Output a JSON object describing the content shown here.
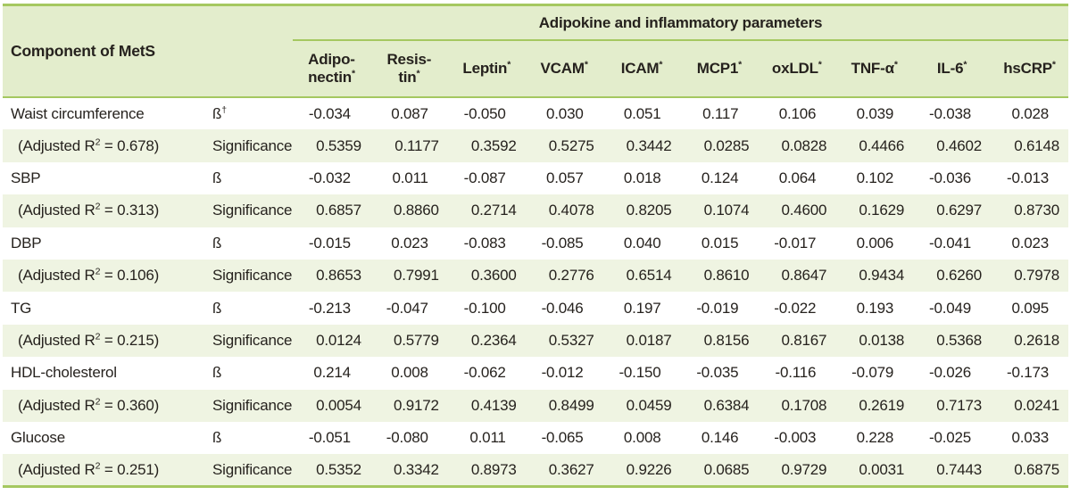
{
  "table": {
    "corner_header": "Component of MetS",
    "group_header": "Adipokine and inflammatory parameters",
    "columns": [
      {
        "key": "adiponectin",
        "label": "Adipo-\nnectin",
        "sup": "*"
      },
      {
        "key": "resistin",
        "label": "Resis-\ntin",
        "sup": "*"
      },
      {
        "key": "leptin",
        "label": "Leptin",
        "sup": "*"
      },
      {
        "key": "vcam",
        "label": "VCAM",
        "sup": "*"
      },
      {
        "key": "icam",
        "label": "ICAM",
        "sup": "*"
      },
      {
        "key": "mcp1",
        "label": "MCP1",
        "sup": "*"
      },
      {
        "key": "oxldl",
        "label": "oxLDL",
        "sup": "*"
      },
      {
        "key": "tnf-alpha",
        "label": "TNF-α",
        "sup": "*"
      },
      {
        "key": "il-6",
        "label": "IL-6",
        "sup": "*"
      },
      {
        "key": "hscrp",
        "label": "hsCRP",
        "sup": "*"
      }
    ],
    "stat_labels": {
      "beta": "ß",
      "significance": "Significance"
    },
    "rows": [
      {
        "key": "waist-circumference",
        "label": "Waist circumference",
        "sub_pre": "(Adjusted R",
        "sub_sup": "2",
        "sub_post": " = 0.678)",
        "beta_sup": "†",
        "beta": [
          "-0.034",
          "0.087",
          "-0.050",
          "0.030",
          "0.051",
          "0.117",
          "0.106",
          "0.039",
          "-0.038",
          "0.028"
        ],
        "significance": [
          "0.5359",
          "0.1177",
          "0.3592",
          "0.5275",
          "0.3442",
          "0.0285",
          "0.0828",
          "0.4466",
          "0.4602",
          "0.6148"
        ]
      },
      {
        "key": "sbp",
        "label": "SBP",
        "sub_pre": "(Adjusted R",
        "sub_sup": "2",
        "sub_post": " = 0.313)",
        "beta_sup": "",
        "beta": [
          "-0.032",
          "0.011",
          "-0.087",
          "0.057",
          "0.018",
          "0.124",
          "0.064",
          "0.102",
          "-0.036",
          "-0.013"
        ],
        "significance": [
          "0.6857",
          "0.8860",
          "0.2714",
          "0.4078",
          "0.8205",
          "0.1074",
          "0.4600",
          "0.1629",
          "0.6297",
          "0.8730"
        ]
      },
      {
        "key": "dbp",
        "label": "DBP",
        "sub_pre": "(Adjusted R",
        "sub_sup": "2",
        "sub_post": " = 0.106)",
        "beta_sup": "",
        "beta": [
          "-0.015",
          "0.023",
          "-0.083",
          "-0.085",
          "0.040",
          "0.015",
          "-0.017",
          "0.006",
          "-0.041",
          "0.023"
        ],
        "significance": [
          "0.8653",
          "0.7991",
          "0.3600",
          "0.2776",
          "0.6514",
          "0.8610",
          "0.8647",
          "0.9434",
          "0.6260",
          "0.7978"
        ]
      },
      {
        "key": "tg",
        "label": "TG",
        "sub_pre": "(Adjusted R",
        "sub_sup": "2",
        "sub_post": " = 0.215)",
        "beta_sup": "",
        "beta": [
          "-0.213",
          "-0.047",
          "-0.100",
          "-0.046",
          "0.197",
          "-0.019",
          "-0.022",
          "0.193",
          "-0.049",
          "0.095"
        ],
        "significance": [
          "0.0124",
          "0.5779",
          "0.2364",
          "0.5327",
          "0.0187",
          "0.8156",
          "0.8167",
          "0.0138",
          "0.5368",
          "0.2618"
        ]
      },
      {
        "key": "hdl-cholesterol",
        "label": "HDL-cholesterol",
        "sub_pre": "(Adjusted R",
        "sub_sup": "2",
        "sub_post": " = 0.360)",
        "beta_sup": "",
        "beta": [
          "0.214",
          "0.008",
          "-0.062",
          "-0.012",
          "-0.150",
          "-0.035",
          "-0.116",
          "-0.079",
          "-0.026",
          "-0.173"
        ],
        "significance": [
          "0.0054",
          "0.9172",
          "0.4139",
          "0.8499",
          "0.0459",
          "0.6384",
          "0.1708",
          "0.2619",
          "0.7173",
          "0.0241"
        ]
      },
      {
        "key": "glucose",
        "label": "Glucose",
        "sub_pre": "(Adjusted R",
        "sub_sup": "2",
        "sub_post": " = 0.251)",
        "beta_sup": "",
        "beta": [
          "-0.051",
          "-0.080",
          "0.011",
          "-0.065",
          "0.008",
          "0.146",
          "-0.003",
          "0.228",
          "-0.025",
          "0.033"
        ],
        "significance": [
          "0.5352",
          "0.3342",
          "0.8973",
          "0.3627",
          "0.9226",
          "0.0685",
          "0.9729",
          "0.0031",
          "0.7443",
          "0.6875"
        ]
      }
    ],
    "colors": {
      "border_green": "#a5c860",
      "header_bg": "#e3edcc",
      "sig_row_bg": "#eff4e2",
      "text": "#26221e"
    }
  }
}
